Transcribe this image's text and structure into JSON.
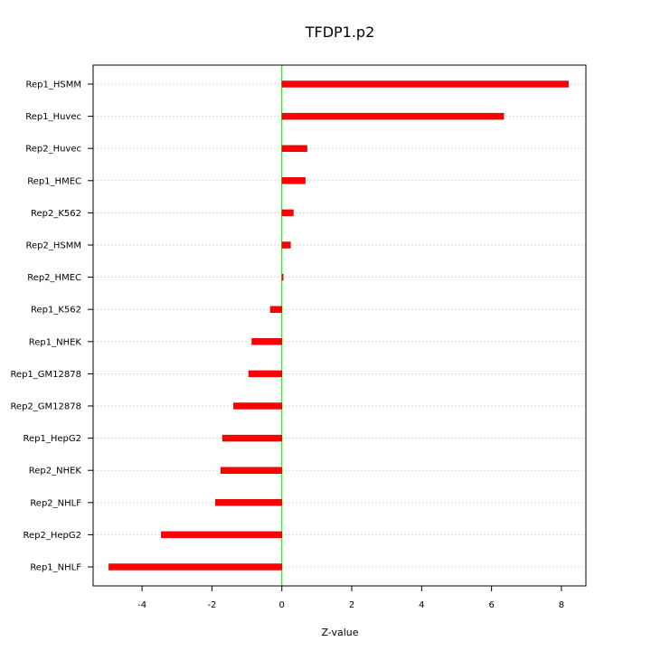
{
  "chart_data": {
    "type": "bar",
    "orientation": "horizontal",
    "title": "TFDP1.p2",
    "xlabel": "Z-value",
    "ylabel": "",
    "categories": [
      "Rep1_HSMM",
      "Rep1_Huvec",
      "Rep2_Huvec",
      "Rep1_HMEC",
      "Rep2_K562",
      "Rep2_HSMM",
      "Rep2_HMEC",
      "Rep1_K562",
      "Rep1_NHEK",
      "Rep1_GM12878",
      "Rep2_GM12878",
      "Rep1_HepG2",
      "Rep2_NHEK",
      "Rep2_NHLF",
      "Rep2_HepG2",
      "Rep1_NHLF"
    ],
    "values": [
      8.2,
      6.35,
      0.72,
      0.67,
      0.33,
      0.25,
      0.04,
      -0.33,
      -0.86,
      -0.95,
      -1.38,
      -1.7,
      -1.75,
      -1.9,
      -3.45,
      -4.95
    ],
    "xlim": [
      -5.4,
      8.7
    ],
    "xticks": [
      -4,
      -2,
      0,
      2,
      4,
      6,
      8
    ],
    "xtick_labels": [
      "-4",
      "-2",
      "0",
      "2",
      "4",
      "6",
      "8"
    ],
    "grid": "horizontal dotted",
    "bar_color": "#ff0000",
    "zero_line_color": "#00ff00"
  }
}
